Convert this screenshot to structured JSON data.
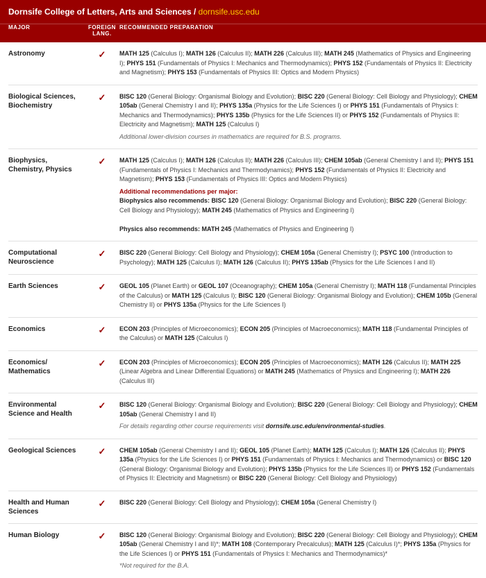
{
  "header": {
    "college": "Dornsife College of Letters, Arts and Sciences",
    "url": "dornsife.usc.edu"
  },
  "columns": {
    "major": "MAJOR",
    "lang": "FOREIGN LANG.",
    "prep": "RECOMMENDED PREPARATION"
  },
  "check": "✓",
  "rows": [
    {
      "major": "Astronomy",
      "lang": true,
      "prep": "<b>MATH 125</b> (Calculus I); <b>MATH 126</b> (Calculus II); <b>MATH 226</b> (Calculus III); <b>MATH 245</b> (Mathematics of Physics and Engineering I); <b>PHYS 151</b> (Fundamentals of Physics I: Mechanics and Thermodynamics); <b>PHYS 152</b> (Fundamentals of Physics II: Electricity and Magnetism); <b>PHYS 153</b> (Fundamentals of Physics III: Optics and Modern Physics)"
    },
    {
      "major": "Biological Sciences, Biochemistry",
      "lang": true,
      "prep": "<b>BISC 120</b> (General Biology: Organismal Biology and Evolution); <b>BISC 220</b> (General Biology: Cell Biology and Physiology); <b>CHEM 105ab</b> (General Chemistry I and II); <b>PHYS 135a</b> (Physics for the Life Sciences I) or <b>PHYS 151</b> (Fundamentals of Physics I: Mechanics and Thermodynamics); <b>PHYS 135b</b> (Physics for the Life Sciences II) or <b>PHYS 152</b> (Fundamentals of Physics II: Electricity and Magnetism); <b>MATH 125</b> (Calculus I)<span class='note'>Additional lower-division courses in mathematics are required for B.S. programs.</span>"
    },
    {
      "major": "Biophysics, Chemistry, Physics",
      "lang": true,
      "prep": "<b>MATH 125</b> (Calculus I); <b>MATH 126</b> (Calculus II); <b>MATH 226</b> (Calculus III); <b>CHEM 105ab</b> (General Chemistry I and II); <b>PHYS 151</b> (Fundamentals of Physics I: Mechanics and Thermodynamics); <b>PHYS 152</b> (Fundamentals of Physics II: Electricity and Magnetism); <b>PHYS 153</b> (Fundamentals of Physics III: Optics and Modern Physics)<span class='red'>Additional recommendations per major:</span><b>Biophysics also recommends: BISC 120</b> (General Biology: Organismal Biology and Evolution); <b>BISC 220</b> (General Biology: Cell Biology and Physiology); <b>MATH 245</b> (Mathematics of Physics and Engineering I)<br><br><b>Physics also recommends: MATH 245</b> (Mathematics of Physics and Engineering I)"
    },
    {
      "major": "Computational Neuroscience",
      "lang": true,
      "prep": "<b>BISC 220</b> (General Biology: Cell Biology and Physiology); <b>CHEM 105a</b> (General Chemistry I); <b>PSYC 100</b> (Introduction to Psychology); <b>MATH 125</b> (Calculus I); <b>MATH 126</b> (Calculus II); <b>PHYS 135ab</b> (Physics for the Life Sciences I and II)"
    },
    {
      "major": "Earth Sciences",
      "lang": true,
      "prep": "<b>GEOL 105</b> (Planet Earth) or <b>GEOL 107</b> (Oceanography); <b>CHEM 105a</b> (General Chemistry I); <b>MATH 118</b> (Fundamental Principles of the Calculus) or <b>MATH 125</b> (Calculus I); <b>BISC 120</b> (General Biology: Organismal Biology and Evolution); <b>CHEM 105b</b> (General Chemistry II) or <b>PHYS 135a</b> (Physics for the Life Sciences I)"
    },
    {
      "major": "Economics",
      "lang": true,
      "prep": "<b>ECON 203</b> (Principles of Microeconomics); <b>ECON 205</b> (Principles of Macroeconomics); <b>MATH 118</b> (Fundamental Principles of the Calculus) or <b>MATH 125</b> (Calculus I)"
    },
    {
      "major": "Economics/ Mathematics",
      "lang": true,
      "prep": "<b>ECON 203</b> (Principles of Microeconomics); <b>ECON 205</b> (Principles of Macroeconomics); <b>MATH 126</b> (Calculus II); <b>MATH 225</b> (Linear Algebra and Linear Differential Equations) or <b>MATH 245</b> (Mathematics of Physics and Engineering I); <b>MATH 226</b> (Calculus III)"
    },
    {
      "major": "Environmental Science and Health",
      "lang": true,
      "prep": "<b>BISC 120</b> (General Biology: Organismal Biology and Evolution); <b>BISC 220</b> (General Biology: Cell Biology and Physiology); <b>CHEM 105ab</b> (General Chemistry I and II)<span class='note'>For details regarding other course requirements visit <b>dornsife.usc.edu/environmental-studies</b>.</span>"
    },
    {
      "major": "Geological Sciences",
      "lang": true,
      "prep": "<b>CHEM 105ab</b> (General Chemistry I and II); <b>GEOL 105</b> (Planet Earth); <b>MATH 125</b> (Calculus I); <b>MATH 126</b> (Calculus II); <b>PHYS 135a</b> (Physics for the Life Sciences I) or <b>PHYS 151</b> (Fundamentals of Physics I: Mechanics and Thermodynamics) or <b>BISC 120</b> (General Biology: Organismal Biology and Evolution); <b>PHYS 135b</b> (Physics for the Life Sciences II) or <b>PHYS 152</b> (Fundamentals of Physics II: Electricity and Magnetism) or <b>BISC 220</b> (General Biology: Cell Biology and Physiology)"
    },
    {
      "major": "Health and Human Sciences",
      "lang": true,
      "prep": "<b>BISC 220</b> (General Biology: Cell Biology and Physiology); <b>CHEM 105a</b> (General Chemistry I)"
    },
    {
      "major": "Human Biology",
      "lang": true,
      "prep": "<b>BISC 120</b> (General Biology: Organismal Biology and Evolution); <b>BISC 220</b> (General Biology: Cell Biology and Physiology); <b>CHEM 105ab</b> (General Chemistry I and II)*; <b>MATH 108</b> (Contemporary Precalculus); <b>MATH 125</b> (Calculus I)*; <b>PHYS 135a</b> (Physics for the Life Sciences I) or <b>PHYS 151</b> (Fundamentals of Physics I: Mechanics and Thermodynamics)*<span class='note'>*Not required for the B.A.</span>"
    }
  ]
}
